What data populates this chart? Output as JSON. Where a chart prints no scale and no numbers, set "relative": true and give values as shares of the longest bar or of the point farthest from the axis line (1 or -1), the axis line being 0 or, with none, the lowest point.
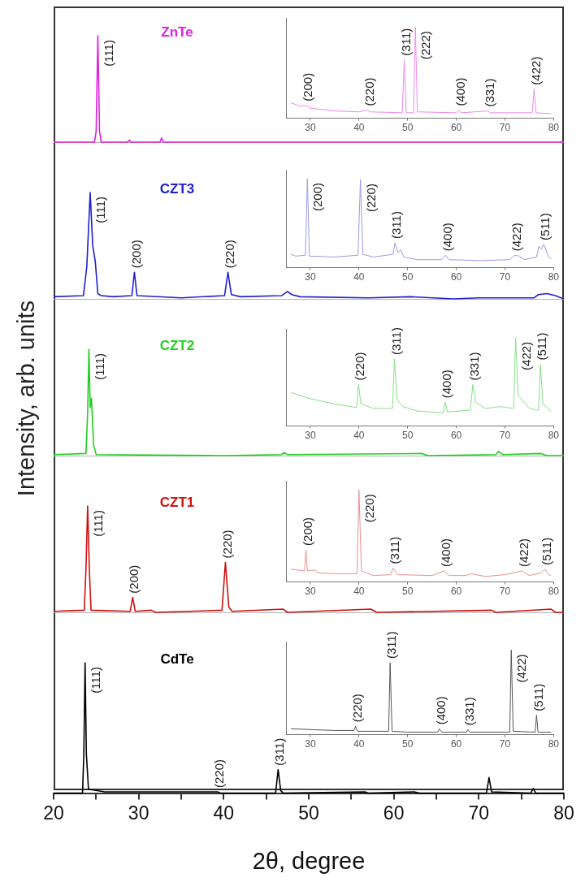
{
  "chart_data": [
    {
      "type": "line",
      "relative": true,
      "xlim": [
        20,
        80
      ],
      "tick_labels": false,
      "series": [
        {
          "name": "ZnTe",
          "color": "#e020e0",
          "x": [
            20,
            24.8,
            25.0,
            25.2,
            25.4,
            25.6,
            28.7,
            28.9,
            29.1,
            32.5,
            32.7,
            32.9,
            76,
            80
          ],
          "values": [
            0,
            0,
            0.1,
            1,
            0.1,
            0,
            0,
            0.02,
            0,
            0,
            0.04,
            0,
            0,
            0
          ]
        }
      ],
      "annotations": [
        {
          "text": "(111)",
          "x": 25.2,
          "y": 1
        }
      ]
    },
    {
      "type": "line",
      "relative": true,
      "xlim": [
        25,
        80
      ],
      "xticks": [
        30,
        40,
        50,
        60,
        70,
        80
      ],
      "tick_labels": "x",
      "series": [
        {
          "color": "#ee88ee",
          "x": [
            26,
            28,
            29.2,
            30,
            35,
            40,
            41.8,
            42.2,
            48.9,
            49.3,
            49.7,
            51.2,
            51.6,
            52.0,
            60,
            60.6,
            61,
            66.5,
            67,
            75.6,
            76.0,
            76.4,
            79.5
          ],
          "values": [
            0.17,
            0.13,
            0.14,
            0.11,
            0.08,
            0.07,
            0.09,
            0.07,
            0.06,
            0.64,
            0.06,
            0.06,
            1,
            0.07,
            0.06,
            0.09,
            0.06,
            0.08,
            0.06,
            0.06,
            0.32,
            0.06,
            0.05
          ]
        }
      ],
      "annotations": [
        {
          "text": "(200)",
          "x": 29.2,
          "y": 0.14
        },
        {
          "text": "(220)",
          "x": 41.8,
          "y": 0.09
        },
        {
          "text": "(311)",
          "x": 49.3,
          "y": 0.64
        },
        {
          "text": "(222)",
          "x": 51.6,
          "y": 1
        },
        {
          "text": "(400)",
          "x": 60.6,
          "y": 0.09
        },
        {
          "text": "(331)",
          "x": 66.5,
          "y": 0.08
        },
        {
          "text": "(422)",
          "x": 76.0,
          "y": 0.32
        }
      ]
    },
    {
      "type": "line",
      "relative": true,
      "xlim": [
        20,
        80
      ],
      "tick_labels": false,
      "series": [
        {
          "name": "CZT3",
          "color": "#2020d0",
          "x": [
            20,
            23.5,
            23.9,
            24.3,
            24.6,
            24.9,
            25.2,
            25.6,
            27,
            29.2,
            29.5,
            29.8,
            35,
            40.1,
            40.5,
            40.9,
            42,
            46.8,
            47.5,
            48,
            49,
            57,
            62,
            67,
            70,
            76.5,
            77,
            78,
            79,
            80
          ],
          "values": [
            0.02,
            0.03,
            0.3,
            1,
            0.5,
            0.35,
            0.05,
            0.03,
            0.02,
            0.03,
            0.25,
            0.03,
            0.01,
            0.03,
            0.25,
            0.04,
            0.02,
            0.03,
            0.07,
            0.04,
            0.02,
            0.01,
            0.02,
            0,
            0.01,
            0.01,
            0.04,
            0.05,
            0.03,
            0
          ]
        }
      ],
      "annotations": [
        {
          "text": "(111)",
          "x": 24.3,
          "y": 1
        },
        {
          "text": "(200)",
          "x": 29.5,
          "y": 0.25
        },
        {
          "text": "(220)",
          "x": 40.5,
          "y": 0.25
        }
      ]
    },
    {
      "type": "line",
      "relative": true,
      "xlim": [
        25,
        80
      ],
      "xticks": [
        30,
        40,
        50,
        60,
        70,
        80
      ],
      "tick_labels": "x",
      "series": [
        {
          "color": "#9a9ae8",
          "x": [
            26,
            27,
            29,
            29.4,
            29.8,
            35,
            39.8,
            40.3,
            40.8,
            43,
            47,
            47.4,
            48,
            48.6,
            49.2,
            52,
            57,
            57.8,
            58.5,
            65,
            71,
            72,
            73,
            74,
            76.5,
            77,
            77.5,
            78,
            79,
            79.5
          ],
          "values": [
            0.15,
            0.13,
            0.14,
            1,
            0.13,
            0.12,
            0.14,
            0.99,
            0.15,
            0.12,
            0.15,
            0.28,
            0.17,
            0.2,
            0.12,
            0.09,
            0.09,
            0.14,
            0.09,
            0.08,
            0.09,
            0.14,
            0.13,
            0.09,
            0.12,
            0.24,
            0.21,
            0.26,
            0.12,
            0.1
          ]
        }
      ],
      "annotations": [
        {
          "text": "(200)",
          "x": 29.4,
          "y": 1
        },
        {
          "text": "(220)",
          "x": 40.3,
          "y": 0.99
        },
        {
          "text": "(311)",
          "x": 47.4,
          "y": 0.28
        },
        {
          "text": "(400)",
          "x": 57.8,
          "y": 0.14
        },
        {
          "text": "(422)",
          "x": 72,
          "y": 0.14
        },
        {
          "text": "(511)",
          "x": 78,
          "y": 0.26
        }
      ]
    },
    {
      "type": "line",
      "relative": true,
      "xlim": [
        20,
        80
      ],
      "tick_labels": false,
      "ylabel": "Intensity, arb. units",
      "series": [
        {
          "name": "CZT2",
          "color": "#20d020",
          "x": [
            20,
            23.8,
            24.0,
            24.15,
            24.3,
            24.45,
            24.7,
            25,
            40,
            46.8,
            47.1,
            47.5,
            63.3,
            64,
            72,
            72.3,
            72.8,
            77.3,
            78,
            80
          ],
          "values": [
            0.01,
            0.02,
            0.4,
            1,
            0.45,
            0.54,
            0.1,
            0.01,
            0,
            0.01,
            0.03,
            0.01,
            0.02,
            0,
            0.01,
            0.04,
            0.01,
            0.02,
            0,
            0
          ]
        }
      ],
      "annotations": [
        {
          "text": "(111)",
          "x": 24.15,
          "y": 1
        }
      ]
    },
    {
      "type": "line",
      "relative": true,
      "xlim": [
        25,
        80
      ],
      "xticks": [
        30,
        40,
        50,
        60,
        70,
        80
      ],
      "tick_labels": "x",
      "series": [
        {
          "color": "#88e088",
          "x": [
            26,
            30,
            35,
            39.5,
            39.9,
            40.4,
            43,
            46.9,
            47.3,
            47.8,
            49,
            52,
            57.3,
            57.7,
            58.2,
            62.9,
            63.4,
            64,
            66,
            69,
            71.8,
            72.2,
            72.7,
            75,
            76.9,
            77.3,
            77.8,
            78.5,
            79.5
          ],
          "values": [
            0.38,
            0.31,
            0.25,
            0.21,
            0.47,
            0.25,
            0.2,
            0.2,
            0.76,
            0.3,
            0.22,
            0.17,
            0.15,
            0.27,
            0.16,
            0.18,
            0.47,
            0.27,
            0.2,
            0.22,
            0.2,
            1,
            0.35,
            0.2,
            0.18,
            0.7,
            0.25,
            0.22,
            0.16
          ]
        }
      ],
      "annotations": [
        {
          "text": "(220)",
          "x": 39.9,
          "y": 0.47
        },
        {
          "text": "(311)",
          "x": 47.3,
          "y": 0.76
        },
        {
          "text": "(400)",
          "x": 57.7,
          "y": 0.27
        },
        {
          "text": "(331)",
          "x": 63.4,
          "y": 0.47
        },
        {
          "text": "(422)",
          "x": 72.2,
          "y": 1
        },
        {
          "text": "(511)",
          "x": 77.3,
          "y": 0.7
        }
      ]
    },
    {
      "type": "line",
      "relative": true,
      "xlim": [
        20,
        80
      ],
      "tick_labels": false,
      "series": [
        {
          "name": "CZT1",
          "color": "#d01010",
          "x": [
            20,
            23.6,
            23.8,
            24.0,
            24.2,
            24.4,
            29,
            29.3,
            29.6,
            31.5,
            32,
            39.8,
            40.2,
            40.6,
            41,
            47,
            47.5,
            57.3,
            58,
            71.5,
            72,
            78.5,
            79,
            80
          ],
          "values": [
            0.01,
            0.02,
            0.4,
            1,
            0.4,
            0.02,
            0.01,
            0.14,
            0.01,
            0.02,
            0,
            0.02,
            0.47,
            0.05,
            0.01,
            0.03,
            0,
            0.03,
            0,
            0.02,
            0,
            0.03,
            0,
            0
          ]
        }
      ],
      "annotations": [
        {
          "text": "(111)",
          "x": 24.0,
          "y": 1
        },
        {
          "text": "(200)",
          "x": 29.3,
          "y": 0.14
        },
        {
          "text": "(220)",
          "x": 40.2,
          "y": 0.47
        }
      ]
    },
    {
      "type": "line",
      "relative": true,
      "xlim": [
        25,
        80
      ],
      "xticks": [
        30,
        40,
        50,
        60,
        70,
        80
      ],
      "tick_labels": "x",
      "series": [
        {
          "color": "#e89090",
          "x": [
            26,
            28.8,
            29.1,
            29.4,
            31,
            31.5,
            35,
            39.6,
            40.0,
            40.5,
            43,
            46.5,
            47,
            48,
            55,
            57.5,
            58.5,
            62,
            63,
            66,
            70,
            73.5,
            75,
            77.5,
            78.2,
            79,
            79.5
          ],
          "values": [
            0.14,
            0.12,
            0.35,
            0.12,
            0.13,
            0.1,
            0.09,
            0.09,
            1,
            0.12,
            0.07,
            0.08,
            0.15,
            0.08,
            0.07,
            0.12,
            0.07,
            0.07,
            0.09,
            0.06,
            0.08,
            0.12,
            0.07,
            0.1,
            0.14,
            0.08,
            0.07
          ]
        }
      ],
      "annotations": [
        {
          "text": "(200)",
          "x": 29.1,
          "y": 0.35
        },
        {
          "text": "(220)",
          "x": 40.0,
          "y": 1
        },
        {
          "text": "(311)",
          "x": 47,
          "y": 0.15
        },
        {
          "text": "(400)",
          "x": 57.5,
          "y": 0.12
        },
        {
          "text": "(422)",
          "x": 73.5,
          "y": 0.12
        },
        {
          "text": "(511)",
          "x": 78.2,
          "y": 0.14
        }
      ]
    },
    {
      "type": "line",
      "relative": true,
      "xlim": [
        20,
        80
      ],
      "xticks": [
        20,
        {
          "value": 25,
          "label": null
        },
        30,
        {
          "value": 35,
          "label": null
        },
        40,
        {
          "value": 45,
          "label": null
        },
        50,
        {
          "value": 55,
          "label": null
        },
        60,
        {
          "value": 65,
          "label": null
        },
        70,
        {
          "value": 75,
          "label": null
        },
        80
      ],
      "tick_labels": "x",
      "xlabel": "2θ, degree",
      "series": [
        {
          "name": "CdTe",
          "color": "#000000",
          "x": [
            20,
            23.4,
            23.55,
            23.7,
            23.85,
            24.1,
            26,
            39.3,
            39.6,
            46.1,
            46.4,
            46.7,
            47,
            56.6,
            57,
            62.4,
            63,
            70.9,
            71.2,
            71.5,
            76.1,
            76.4,
            76.7,
            80
          ],
          "values": [
            0,
            0,
            0.3,
            1,
            0.3,
            0.03,
            0.01,
            0.01,
            0,
            0,
            0.18,
            0.02,
            0,
            0.01,
            0,
            0.01,
            0,
            0,
            0.12,
            0.01,
            0,
            0.035,
            0,
            0
          ]
        }
      ],
      "annotations": [
        {
          "text": "(111)",
          "x": 23.7,
          "y": 1
        },
        {
          "text": "(220)",
          "x": 39.3,
          "y": 0.01
        },
        {
          "text": "(311)",
          "x": 46.4,
          "y": 0.18
        }
      ]
    },
    {
      "type": "line",
      "relative": true,
      "xlim": [
        25,
        80
      ],
      "xticks": [
        30,
        40,
        50,
        60,
        70,
        80
      ],
      "tick_labels": "x",
      "series": [
        {
          "color": "#555555",
          "x": [
            26,
            30,
            35,
            39,
            39.3,
            39.7,
            46.1,
            46.4,
            46.8,
            50,
            56.2,
            56.5,
            57,
            62.1,
            62.4,
            62.8,
            71,
            71.3,
            71.7,
            76.2,
            76.5,
            76.8,
            79.5
          ],
          "values": [
            0.07,
            0.06,
            0.05,
            0.05,
            0.1,
            0.04,
            0.04,
            0.85,
            0.04,
            0.03,
            0.03,
            0.07,
            0.03,
            0.03,
            0.06,
            0.03,
            0.03,
            1,
            0.04,
            0.03,
            0.23,
            0.03,
            0.03
          ]
        }
      ],
      "annotations": [
        {
          "text": "(220)",
          "x": 39.3,
          "y": 0.1
        },
        {
          "text": "(311)",
          "x": 46.4,
          "y": 0.85
        },
        {
          "text": "(400)",
          "x": 56.5,
          "y": 0.07
        },
        {
          "text": "(331)",
          "x": 62.4,
          "y": 0.06
        },
        {
          "text": "(422)",
          "x": 71.3,
          "y": 1
        },
        {
          "text": "(511)",
          "x": 76.5,
          "y": 0.23
        }
      ]
    }
  ]
}
